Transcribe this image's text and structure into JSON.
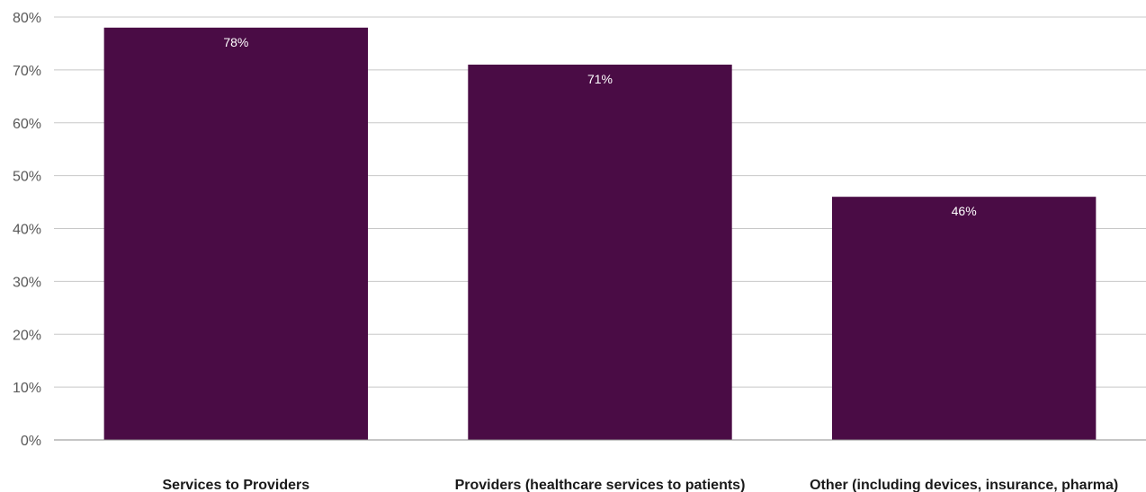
{
  "chart_data": {
    "type": "bar",
    "categories": [
      "Services to Providers",
      "Providers (healthcare services to patients)",
      "Other (including devices, insurance, pharma)"
    ],
    "values": [
      78,
      71,
      46
    ],
    "data_labels": [
      "78%",
      "71%",
      "46%"
    ],
    "y_ticks": [
      0,
      10,
      20,
      30,
      40,
      50,
      60,
      70,
      80
    ],
    "y_tick_labels": [
      "0%",
      "10%",
      "20%",
      "30%",
      "40%",
      "50%",
      "60%",
      "70%",
      "80%"
    ],
    "ylim": [
      0,
      80
    ],
    "y_unit": "%",
    "grid": true,
    "bar_color": "#4a0c45",
    "title": "",
    "xlabel": "",
    "ylabel": ""
  }
}
